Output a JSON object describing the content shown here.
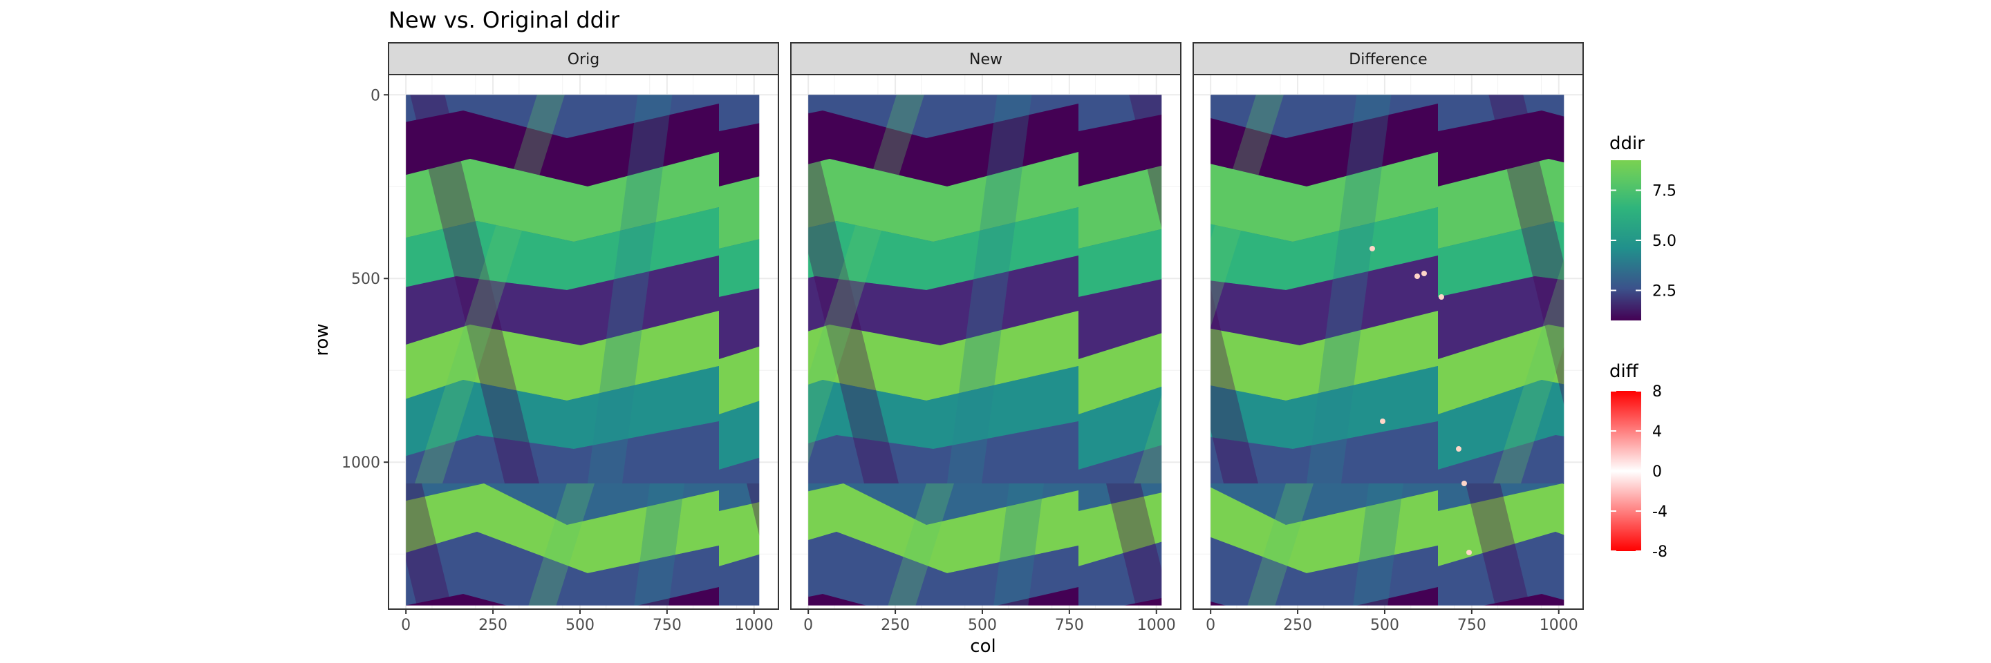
{
  "chart_data": {
    "type": "heatmap",
    "title": "New vs. Original ddir",
    "xlabel": "col",
    "ylabel": "row",
    "facets": [
      "Orig",
      "New",
      "Difference"
    ],
    "x_ticks": [
      0,
      250,
      500,
      750,
      1000
    ],
    "y_ticks": [
      0,
      500,
      1000
    ],
    "xlim": [
      -50,
      1070
    ],
    "ylim": [
      1400,
      -55
    ],
    "y_reversed": true,
    "raster_extent": {
      "cols": [
        0,
        1015
      ],
      "rows": [
        0,
        1390
      ]
    },
    "grid": true,
    "legends": [
      {
        "title": "ddir",
        "type": "continuous",
        "palette": "viridis",
        "range": [
          1,
          9
        ],
        "breaks": [
          2.5,
          5.0,
          7.5
        ],
        "break_labels": [
          "2.5",
          "5.0",
          "7.5"
        ],
        "colors": [
          "#440154",
          "#3b528b",
          "#21908c",
          "#2fb47c",
          "#5dc863",
          "#7ad151"
        ]
      },
      {
        "title": "diff",
        "type": "continuous",
        "range": [
          -8,
          8
        ],
        "breaks": [
          -8,
          -4,
          0,
          4,
          8
        ],
        "break_labels": [
          "-8",
          "-4",
          "0",
          "4",
          "8"
        ],
        "colors": [
          "#ff0000",
          "#ffffff",
          "#ff0000"
        ]
      }
    ],
    "legend_placement": "right"
  }
}
